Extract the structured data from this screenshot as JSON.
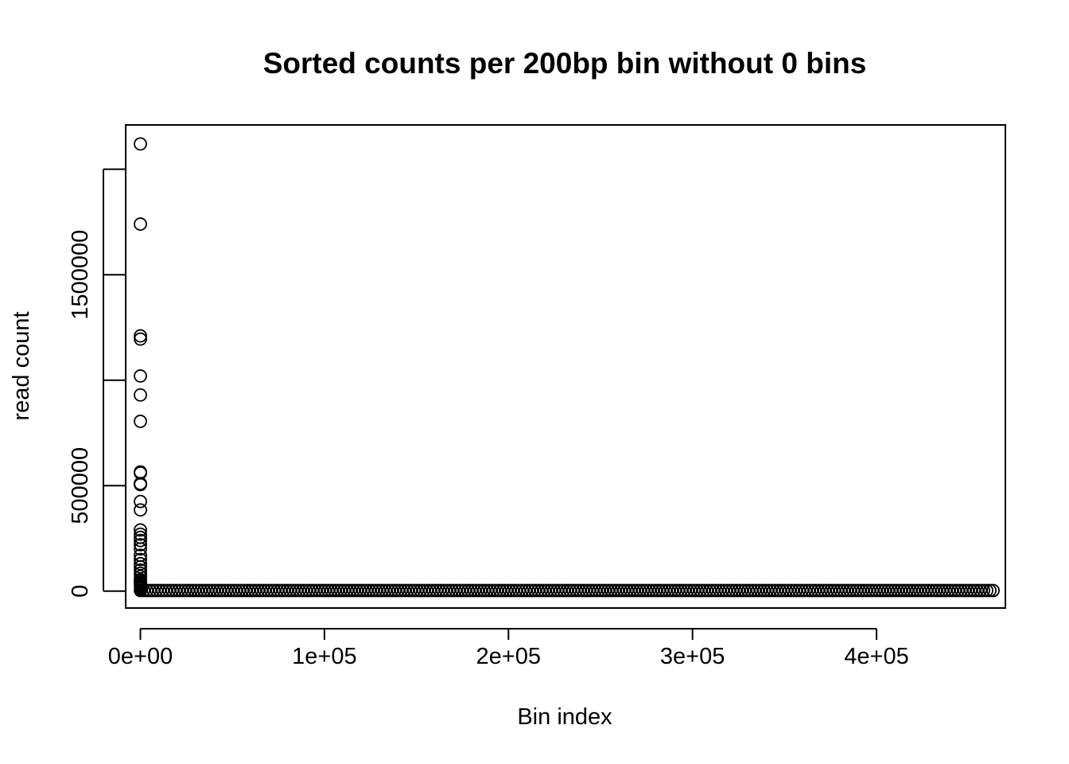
{
  "chart_data": {
    "type": "scatter",
    "title": "Sorted counts per 200bp bin without 0 bins",
    "xlabel": "Bin index",
    "ylabel": "read count",
    "xlim": [
      -8000,
      470000
    ],
    "ylim": [
      -80000,
      2210000
    ],
    "x_ticks": [
      0,
      100000,
      200000,
      300000,
      400000
    ],
    "x_tick_labels": [
      "0e+00",
      "1e+05",
      "2e+05",
      "3e+05",
      "4e+05"
    ],
    "y_ticks": [
      0,
      500000,
      1000000,
      1500000,
      2000000
    ],
    "y_tick_labels": [
      "0",
      "500000",
      "",
      "1500000",
      ""
    ],
    "grid": false,
    "legend": "none",
    "point_style": "open-circle",
    "outlier_points": {
      "x": [
        1,
        2,
        3,
        4,
        5,
        6,
        7,
        8,
        9,
        10,
        11,
        12,
        13,
        14,
        15,
        16,
        17,
        18,
        19,
        20,
        21,
        22,
        23,
        24,
        25,
        26
      ],
      "y": [
        2120000,
        1740000,
        1210000,
        1195000,
        1020000,
        930000,
        805000,
        565000,
        560000,
        510000,
        505000,
        425000,
        385000,
        290000,
        270000,
        255000,
        240000,
        220000,
        200000,
        170000,
        150000,
        130000,
        115000,
        100000,
        85000,
        70000
      ]
    },
    "baseline_series": {
      "x_start": 27,
      "x_end": 465000,
      "approx_value": 3000
    }
  }
}
